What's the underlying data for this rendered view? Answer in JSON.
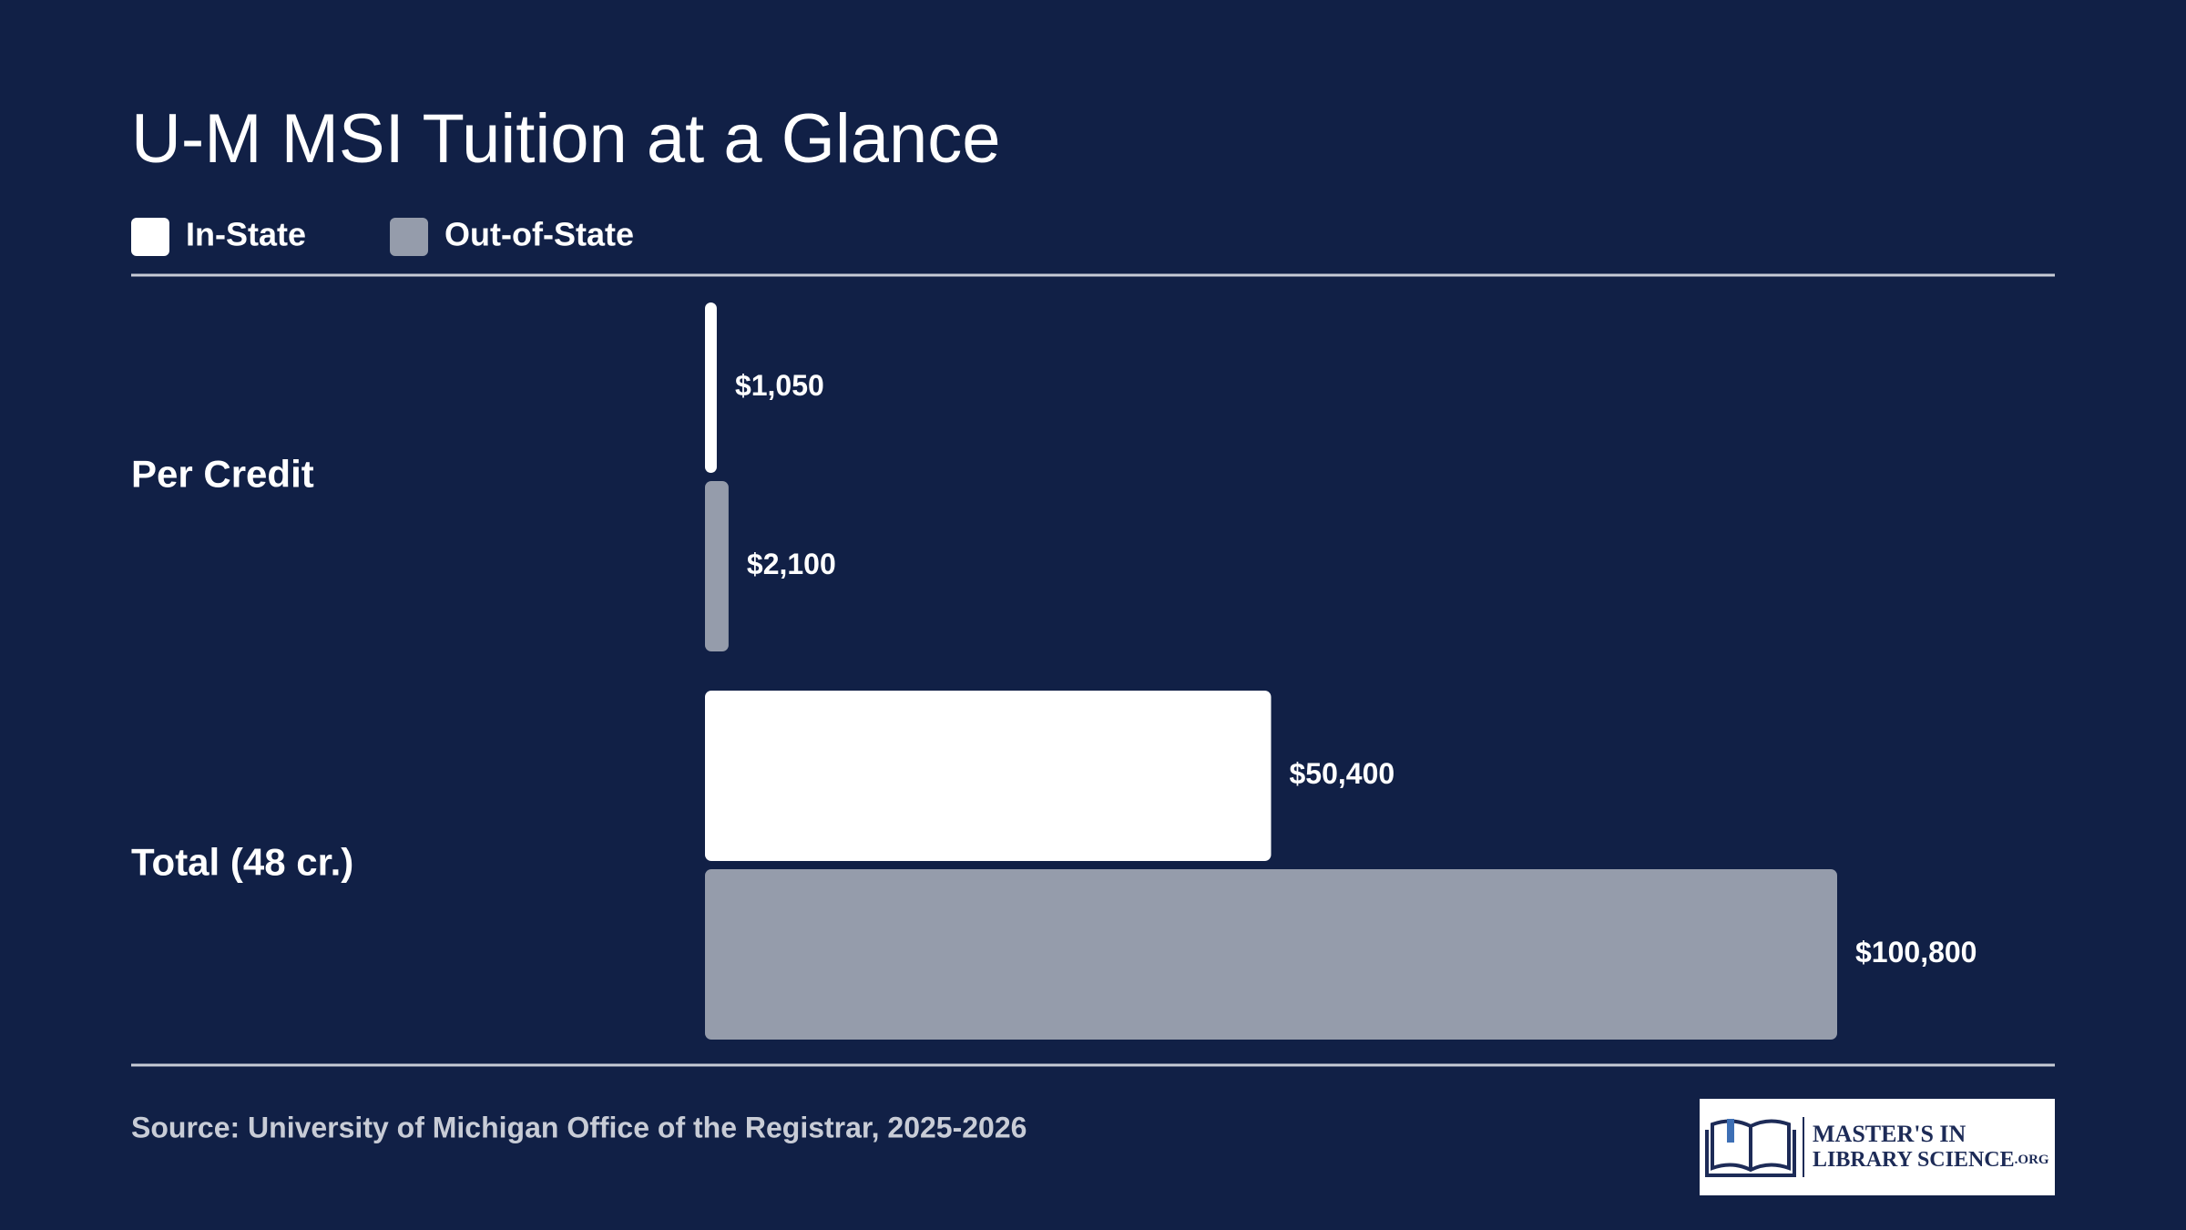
{
  "chart_data": {
    "type": "bar",
    "orientation": "horizontal",
    "title": "U-M MSI Tuition at a Glance",
    "categories": [
      "Per Credit",
      "Total (48 cr.)"
    ],
    "series": [
      {
        "name": "In-State",
        "color": "#ffffff",
        "values": [
          1050,
          50400
        ],
        "value_labels": [
          "$1,050",
          "$50,400"
        ]
      },
      {
        "name": "Out-of-State",
        "color": "#959cab",
        "values": [
          2100,
          100800
        ],
        "value_labels": [
          "$2,100",
          "$100,800"
        ]
      }
    ],
    "source": "Source: University of Michigan Office of the Registrar, 2025-2026"
  },
  "logo": {
    "line1": "MASTER'S IN",
    "line2": "LIBRARY SCIENCE",
    "suffix": ".ORG"
  }
}
